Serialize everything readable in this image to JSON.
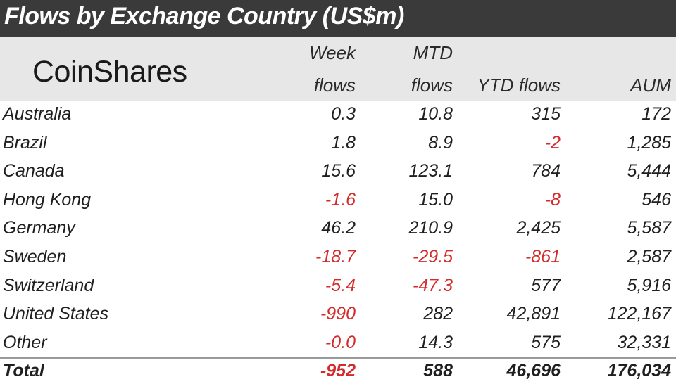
{
  "title": "Flows by Exchange Country (US$m)",
  "logo": "CoinShares",
  "colors": {
    "title_bg": "#3a3a3a",
    "header_bg": "#e7e7e7",
    "negative": "#d42a2a"
  },
  "chart_data": {
    "type": "table",
    "title": "Flows by Exchange Country (US$m)",
    "columns": [
      {
        "line1": "Week",
        "line2": "flows"
      },
      {
        "line1": "MTD",
        "line2": "flows"
      },
      {
        "line1": "",
        "line2": "YTD flows"
      },
      {
        "line1": "",
        "line2": "AUM"
      }
    ],
    "rows": [
      {
        "label": "Australia",
        "values": [
          "0.3",
          "10.8",
          "315",
          "172"
        ]
      },
      {
        "label": "Brazil",
        "values": [
          "1.8",
          "8.9",
          "-2",
          "1,285"
        ]
      },
      {
        "label": "Canada",
        "values": [
          "15.6",
          "123.1",
          "784",
          "5,444"
        ]
      },
      {
        "label": "Hong Kong",
        "values": [
          "-1.6",
          "15.0",
          "-8",
          "546"
        ]
      },
      {
        "label": "Germany",
        "values": [
          "46.2",
          "210.9",
          "2,425",
          "5,587"
        ]
      },
      {
        "label": "Sweden",
        "values": [
          "-18.7",
          "-29.5",
          "-861",
          "2,587"
        ]
      },
      {
        "label": "Switzerland",
        "values": [
          "-5.4",
          "-47.3",
          "577",
          "5,916"
        ]
      },
      {
        "label": "United States",
        "values": [
          "-990",
          "282",
          "42,891",
          "122,167"
        ]
      },
      {
        "label": "Other",
        "values": [
          "-0.0",
          "14.3",
          "575",
          "32,331"
        ]
      }
    ],
    "total": {
      "label": "Total",
      "values": [
        "-952",
        "588",
        "46,696",
        "176,034"
      ]
    }
  }
}
